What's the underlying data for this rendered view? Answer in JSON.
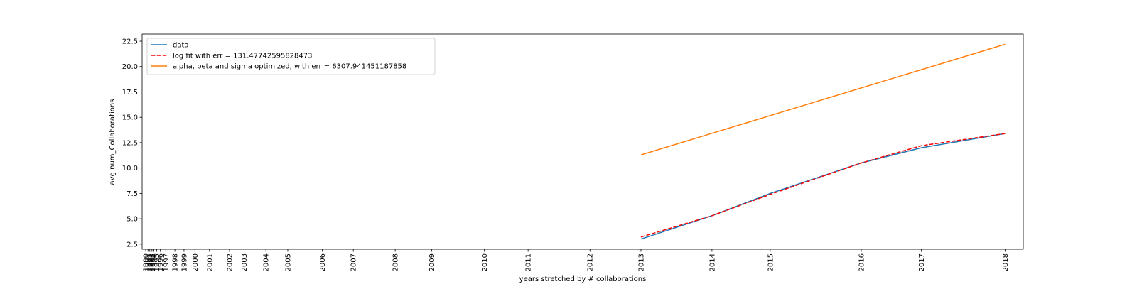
{
  "chart_data": {
    "type": "line",
    "title": "",
    "xlabel": "years stretched by # collaborations",
    "ylabel": "avg num_Collaborations",
    "ylim": [
      2.0,
      23.2
    ],
    "y_ticks": [
      2.5,
      5.0,
      7.5,
      10.0,
      12.5,
      15.0,
      17.5,
      20.0,
      22.5
    ],
    "x_ticks": [
      {
        "label": "1990",
        "x": 0.0
      },
      {
        "label": "1991",
        "x": 0.6
      },
      {
        "label": "1992",
        "x": 1.1
      },
      {
        "label": "1993",
        "x": 1.7
      },
      {
        "label": "1994",
        "x": 2.2
      },
      {
        "label": "1995",
        "x": 3.0
      },
      {
        "label": "1996",
        "x": 4.0
      },
      {
        "label": "1997",
        "x": 5.5
      },
      {
        "label": "1998",
        "x": 8.0
      },
      {
        "label": "1999",
        "x": 10.5
      },
      {
        "label": "2000",
        "x": 13.5
      },
      {
        "label": "2001",
        "x": 17.5
      },
      {
        "label": "2002",
        "x": 23.0
      },
      {
        "label": "2003",
        "x": 27.0
      },
      {
        "label": "2004",
        "x": 33.0
      },
      {
        "label": "2005",
        "x": 39.0
      },
      {
        "label": "2006",
        "x": 48.5
      },
      {
        "label": "2007",
        "x": 57.0
      },
      {
        "label": "2008",
        "x": 68.5
      },
      {
        "label": "2009",
        "x": 78.5
      },
      {
        "label": "2010",
        "x": 93.0
      },
      {
        "label": "2011",
        "x": 105.0
      },
      {
        "label": "2012",
        "x": 122.0
      },
      {
        "label": "2013",
        "x": 136.0
      },
      {
        "label": "2014",
        "x": 155.5
      },
      {
        "label": "2015",
        "x": 171.5
      },
      {
        "label": "2016",
        "x": 196.5
      },
      {
        "label": "2017",
        "x": 213.0
      },
      {
        "label": "2018",
        "x": 236.0
      }
    ],
    "xlim": [
      -1.0,
      241.0
    ],
    "legend_position": "top-left",
    "series": [
      {
        "name": "data",
        "color": "#1f77b4",
        "style": "solid",
        "x": [
          136.0,
          155.5,
          171.5,
          196.5,
          213.0,
          236.0
        ],
        "y": [
          3.0,
          5.3,
          7.5,
          10.5,
          12.0,
          13.4
        ]
      },
      {
        "name": "log fit with err = 131.47742595828473",
        "color": "#ff0000",
        "style": "dashed",
        "x": [
          136.0,
          155.5,
          171.5,
          196.5,
          213.0,
          236.0
        ],
        "y": [
          3.2,
          5.3,
          7.4,
          10.5,
          12.2,
          13.4
        ]
      },
      {
        "name": "alpha, beta and sigma optimized, with err = 6307.941451187858",
        "color": "#ff7f0e",
        "style": "solid",
        "x": [
          136.0,
          236.0
        ],
        "y": [
          11.3,
          22.2
        ]
      }
    ]
  }
}
